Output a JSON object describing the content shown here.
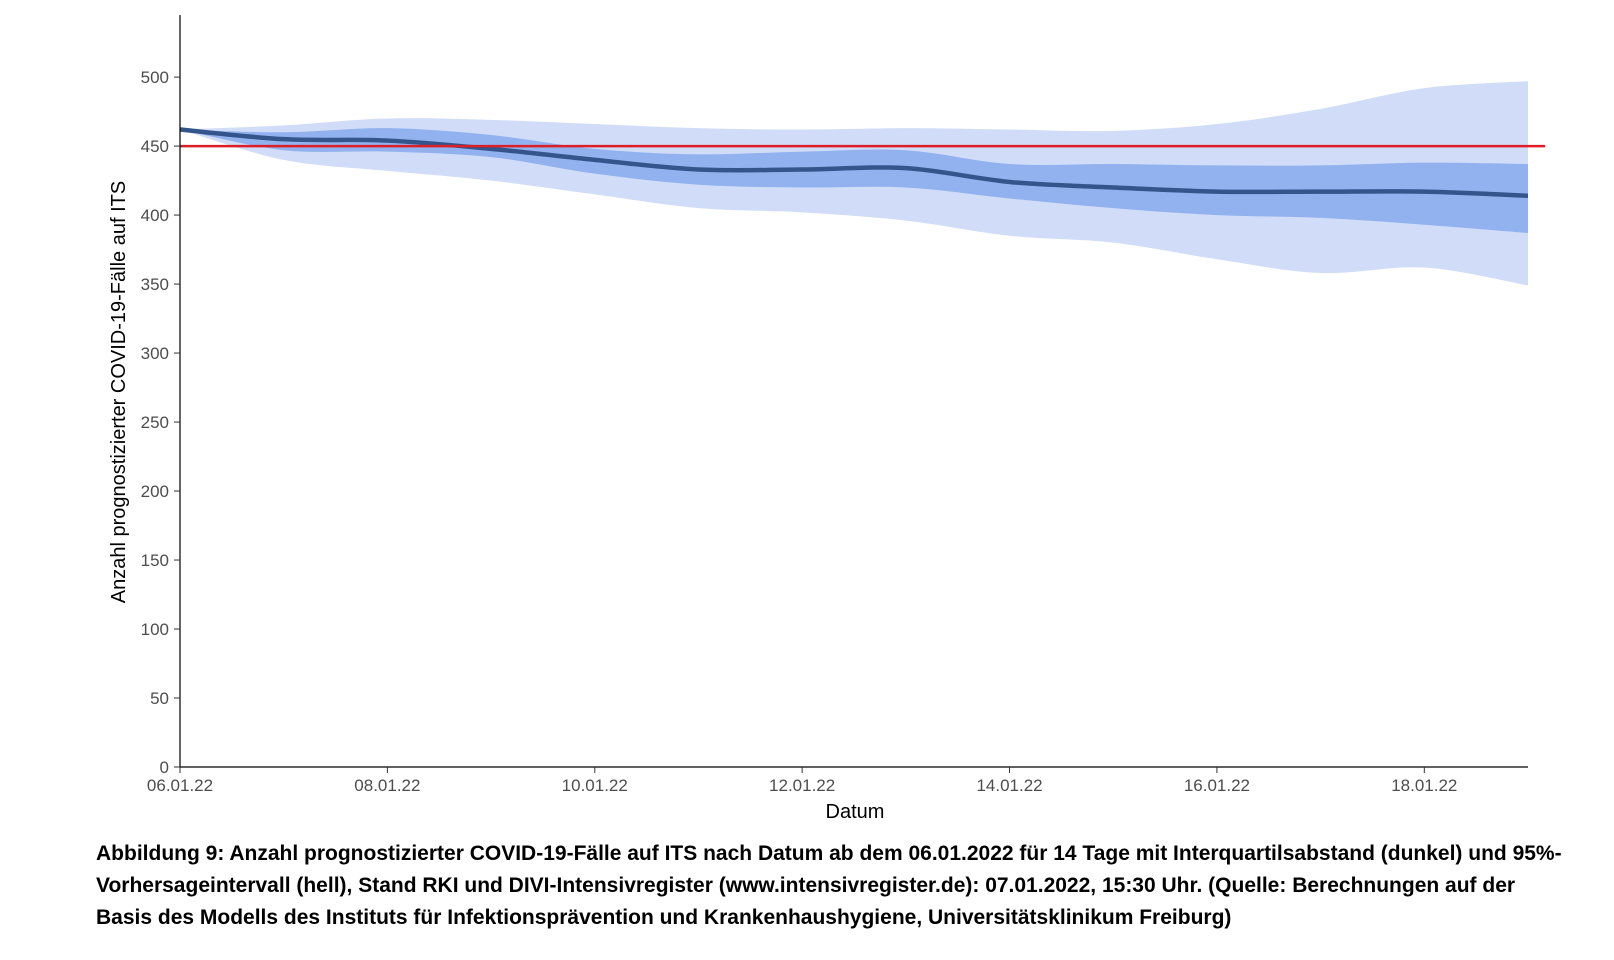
{
  "chart_data": {
    "type": "line",
    "xlabel": "Datum",
    "ylabel": "Anzahl prognostizierter COVID-19-Fälle auf ITS",
    "x_start": "06.01.22",
    "x_end": "19.01.22",
    "ylim": [
      0,
      545
    ],
    "yticks": [
      0,
      50,
      100,
      150,
      200,
      250,
      300,
      350,
      400,
      450,
      500
    ],
    "xticks": [
      "06.01.22",
      "08.01.22",
      "10.01.22",
      "12.01.22",
      "14.01.22",
      "16.01.22",
      "18.01.22"
    ],
    "grid": false,
    "dates": [
      "06.01.22",
      "07.01.22",
      "08.01.22",
      "09.01.22",
      "10.01.22",
      "11.01.22",
      "12.01.22",
      "13.01.22",
      "14.01.22",
      "15.01.22",
      "16.01.22",
      "17.01.22",
      "18.01.22",
      "19.01.22"
    ],
    "median": [
      462,
      455,
      454,
      448,
      440,
      433,
      433,
      434,
      424,
      420,
      417,
      417,
      417,
      414
    ],
    "iqr_lower": [
      462,
      447,
      446,
      442,
      430,
      422,
      420,
      420,
      412,
      405,
      400,
      398,
      393,
      387
    ],
    "iqr_upper": [
      462,
      460,
      463,
      458,
      448,
      444,
      446,
      447,
      437,
      437,
      436,
      436,
      438,
      437
    ],
    "pi95_lower": [
      462,
      440,
      432,
      425,
      415,
      405,
      402,
      396,
      385,
      380,
      368,
      358,
      362,
      349
    ],
    "pi95_upper": [
      462,
      465,
      470,
      469,
      466,
      463,
      462,
      463,
      462,
      461,
      466,
      477,
      492,
      497
    ],
    "threshold": 450,
    "colors": {
      "median": "#34558b",
      "iqr_band": "#92b2ef",
      "pi95_band": "#d1ddf8",
      "threshold": "#dd1e26",
      "axis": "#000000"
    }
  },
  "caption": "Abbildung 9: Anzahl prognostizierter COVID-19-Fälle auf ITS nach Datum ab dem 06.01.2022 für 14 Tage mit Interquartilsabstand (dunkel) und 95%-Vorhersageintervall (hell), Stand RKI und DIVI-Intensivregister (www.intensivregister.de): 07.01.2022, 15:30 Uhr. (Quelle: Berechnungen auf der Basis des Modells des Instituts für Infektionsprävention und Krankenhaushygiene, Universitätsklinikum Freiburg)"
}
